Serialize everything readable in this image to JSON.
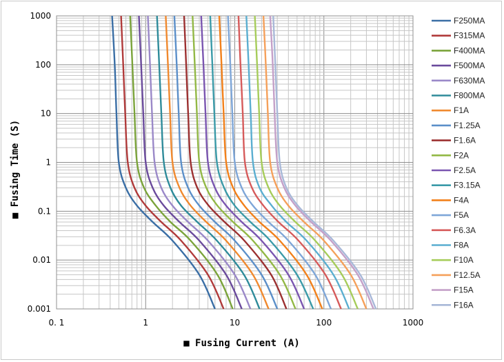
{
  "chart_data": {
    "type": "line",
    "xscale": "log",
    "yscale": "log",
    "xlim": [
      0.1,
      1000
    ],
    "ylim": [
      0.001,
      1000
    ],
    "x_ticks": [
      "0. 1",
      "1",
      "10",
      "100",
      "1000"
    ],
    "y_ticks": [
      "0.001",
      "0.01",
      "0.1",
      "1",
      "10",
      "100",
      "1000"
    ],
    "xlabel": "Fusing  Current (A)",
    "ylabel": "Fusing Time (S)",
    "axis_title_marker": "■",
    "grid": true,
    "legend_position": "right",
    "series": [
      {
        "name": "F250MA",
        "color": "#3a6ea5",
        "points": [
          [
            0.42,
            1000
          ],
          [
            0.45,
            100
          ],
          [
            0.47,
            10
          ],
          [
            0.5,
            1
          ],
          [
            0.6,
            0.3
          ],
          [
            0.8,
            0.13
          ],
          [
            1.2,
            0.06
          ],
          [
            2,
            0.025
          ],
          [
            4,
            0.005
          ],
          [
            6,
            0.001
          ]
        ]
      },
      {
        "name": "F315MA",
        "color": "#b03a3a",
        "points": [
          [
            0.53,
            1000
          ],
          [
            0.56,
            100
          ],
          [
            0.59,
            10
          ],
          [
            0.63,
            1
          ],
          [
            0.75,
            0.3
          ],
          [
            1.0,
            0.13
          ],
          [
            1.5,
            0.06
          ],
          [
            2.5,
            0.025
          ],
          [
            5,
            0.005
          ],
          [
            7.5,
            0.001
          ]
        ]
      },
      {
        "name": "F400MA",
        "color": "#7aa33a",
        "points": [
          [
            0.67,
            1000
          ],
          [
            0.71,
            100
          ],
          [
            0.75,
            10
          ],
          [
            0.8,
            1
          ],
          [
            0.96,
            0.3
          ],
          [
            1.3,
            0.13
          ],
          [
            1.9,
            0.06
          ],
          [
            3.2,
            0.025
          ],
          [
            6.4,
            0.005
          ],
          [
            9.5,
            0.001
          ]
        ]
      },
      {
        "name": "F500MA",
        "color": "#6a4a9c",
        "points": [
          [
            0.84,
            1000
          ],
          [
            0.89,
            100
          ],
          [
            0.94,
            10
          ],
          [
            1.0,
            1
          ],
          [
            1.2,
            0.3
          ],
          [
            1.6,
            0.13
          ],
          [
            2.4,
            0.06
          ],
          [
            4,
            0.025
          ],
          [
            8,
            0.005
          ],
          [
            12,
            0.001
          ]
        ]
      },
      {
        "name": "F630MA",
        "color": "#9a88c8",
        "points": [
          [
            1.06,
            1000
          ],
          [
            1.12,
            100
          ],
          [
            1.18,
            10
          ],
          [
            1.26,
            1
          ],
          [
            1.5,
            0.3
          ],
          [
            2.0,
            0.13
          ],
          [
            3.0,
            0.06
          ],
          [
            5,
            0.025
          ],
          [
            10,
            0.005
          ],
          [
            15,
            0.001
          ]
        ]
      },
      {
        "name": "F800MA",
        "color": "#2e8b9a",
        "points": [
          [
            1.34,
            1000
          ],
          [
            1.42,
            100
          ],
          [
            1.5,
            10
          ],
          [
            1.6,
            1
          ],
          [
            1.9,
            0.3
          ],
          [
            2.5,
            0.13
          ],
          [
            3.8,
            0.06
          ],
          [
            6.3,
            0.025
          ],
          [
            12.7,
            0.005
          ],
          [
            19,
            0.001
          ]
        ]
      },
      {
        "name": "F1A",
        "color": "#f0892e",
        "points": [
          [
            1.68,
            1000
          ],
          [
            1.78,
            100
          ],
          [
            1.88,
            10
          ],
          [
            2.0,
            1
          ],
          [
            2.4,
            0.3
          ],
          [
            3.2,
            0.13
          ],
          [
            4.8,
            0.06
          ],
          [
            8,
            0.025
          ],
          [
            16,
            0.005
          ],
          [
            24,
            0.001
          ]
        ]
      },
      {
        "name": "F1.25A",
        "color": "#5b8fc9",
        "points": [
          [
            2.1,
            1000
          ],
          [
            2.23,
            100
          ],
          [
            2.35,
            10
          ],
          [
            2.5,
            1
          ],
          [
            3.0,
            0.3
          ],
          [
            4.0,
            0.13
          ],
          [
            6.0,
            0.06
          ],
          [
            10,
            0.025
          ],
          [
            20,
            0.005
          ],
          [
            30,
            0.001
          ]
        ]
      },
      {
        "name": "F1.6A",
        "color": "#9c3030",
        "points": [
          [
            2.7,
            1000
          ],
          [
            2.85,
            100
          ],
          [
            3.0,
            10
          ],
          [
            3.2,
            1
          ],
          [
            3.8,
            0.3
          ],
          [
            5.1,
            0.13
          ],
          [
            7.7,
            0.06
          ],
          [
            12.8,
            0.025
          ],
          [
            25.6,
            0.005
          ],
          [
            38,
            0.001
          ]
        ]
      },
      {
        "name": "F2A",
        "color": "#92b845",
        "points": [
          [
            3.36,
            1000
          ],
          [
            3.56,
            100
          ],
          [
            3.76,
            10
          ],
          [
            4.0,
            1
          ],
          [
            4.8,
            0.3
          ],
          [
            6.4,
            0.13
          ],
          [
            9.6,
            0.06
          ],
          [
            16,
            0.025
          ],
          [
            32,
            0.005
          ],
          [
            48,
            0.001
          ]
        ]
      },
      {
        "name": "F2.5A",
        "color": "#7a55b0",
        "points": [
          [
            4.2,
            1000
          ],
          [
            4.45,
            100
          ],
          [
            4.7,
            10
          ],
          [
            5.0,
            1
          ],
          [
            6.0,
            0.3
          ],
          [
            8.0,
            0.13
          ],
          [
            12,
            0.06
          ],
          [
            20,
            0.025
          ],
          [
            40,
            0.005
          ],
          [
            60,
            0.001
          ]
        ]
      },
      {
        "name": "F3.15A",
        "color": "#3a9aa8",
        "points": [
          [
            5.3,
            1000
          ],
          [
            5.6,
            100
          ],
          [
            5.9,
            10
          ],
          [
            6.3,
            1
          ],
          [
            7.6,
            0.3
          ],
          [
            10,
            0.13
          ],
          [
            15,
            0.06
          ],
          [
            25,
            0.025
          ],
          [
            50,
            0.005
          ],
          [
            76,
            0.001
          ]
        ]
      },
      {
        "name": "F4A",
        "color": "#f2801a",
        "points": [
          [
            6.7,
            1000
          ],
          [
            7.1,
            100
          ],
          [
            7.5,
            10
          ],
          [
            8.0,
            1
          ],
          [
            9.6,
            0.3
          ],
          [
            12.8,
            0.13
          ],
          [
            19,
            0.06
          ],
          [
            32,
            0.025
          ],
          [
            64,
            0.005
          ],
          [
            96,
            0.001
          ]
        ]
      },
      {
        "name": "F5A",
        "color": "#7ea6d8",
        "points": [
          [
            8.4,
            1000
          ],
          [
            8.9,
            100
          ],
          [
            9.4,
            10
          ],
          [
            10,
            1
          ],
          [
            12,
            0.3
          ],
          [
            16,
            0.13
          ],
          [
            24,
            0.06
          ],
          [
            40,
            0.025
          ],
          [
            80,
            0.005
          ],
          [
            120,
            0.001
          ]
        ]
      },
      {
        "name": "F6.3A",
        "color": "#d65a5a",
        "points": [
          [
            11,
            1000
          ],
          [
            11.6,
            100
          ],
          [
            12.3,
            10
          ],
          [
            13,
            1
          ],
          [
            15.6,
            0.3
          ],
          [
            21,
            0.13
          ],
          [
            31,
            0.06
          ],
          [
            52,
            0.025
          ],
          [
            104,
            0.005
          ],
          [
            156,
            0.001
          ]
        ]
      },
      {
        "name": "F8A",
        "color": "#5aaed0",
        "points": [
          [
            13.5,
            1000
          ],
          [
            14.3,
            100
          ],
          [
            15.1,
            10
          ],
          [
            16,
            1
          ],
          [
            19,
            0.3
          ],
          [
            26,
            0.13
          ],
          [
            38,
            0.06
          ],
          [
            64,
            0.025
          ],
          [
            128,
            0.005
          ],
          [
            192,
            0.001
          ]
        ]
      },
      {
        "name": "F10A",
        "color": "#a6cc5a",
        "points": [
          [
            16.8,
            1000
          ],
          [
            17.8,
            100
          ],
          [
            18.8,
            10
          ],
          [
            20,
            1
          ],
          [
            24,
            0.3
          ],
          [
            32,
            0.13
          ],
          [
            48,
            0.06
          ],
          [
            80,
            0.025
          ],
          [
            160,
            0.005
          ],
          [
            240,
            0.001
          ]
        ]
      },
      {
        "name": "F12.5A",
        "color": "#f5a05a",
        "points": [
          [
            21,
            1000
          ],
          [
            22.3,
            100
          ],
          [
            23.5,
            10
          ],
          [
            25,
            1
          ],
          [
            30,
            0.3
          ],
          [
            40,
            0.13
          ],
          [
            60,
            0.06
          ],
          [
            100,
            0.025
          ],
          [
            200,
            0.005
          ],
          [
            300,
            0.001
          ]
        ]
      },
      {
        "name": "F15A",
        "color": "#c4a0c8",
        "points": [
          [
            25,
            1000
          ],
          [
            26.7,
            100
          ],
          [
            28,
            10
          ],
          [
            30,
            1
          ],
          [
            36,
            0.3
          ],
          [
            48,
            0.13
          ],
          [
            72,
            0.06
          ],
          [
            120,
            0.025
          ],
          [
            240,
            0.005
          ],
          [
            360,
            0.001
          ]
        ]
      },
      {
        "name": "F16A",
        "color": "#a8b8d8",
        "points": [
          [
            27,
            1000
          ],
          [
            28.5,
            100
          ],
          [
            30,
            10
          ],
          [
            32,
            1
          ],
          [
            38,
            0.3
          ],
          [
            51,
            0.13
          ],
          [
            77,
            0.06
          ],
          [
            128,
            0.025
          ],
          [
            256,
            0.005
          ],
          [
            384,
            0.001
          ]
        ]
      }
    ]
  }
}
